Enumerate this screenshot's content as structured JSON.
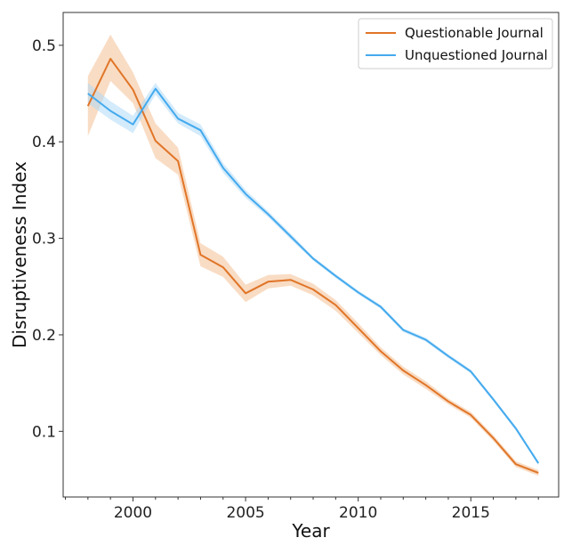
{
  "chart_data": {
    "type": "line",
    "xlabel": "Year",
    "ylabel": "Disruptiveness Index",
    "xlim": [
      1996.9,
      2018.9
    ],
    "ylim": [
      0.032,
      0.534
    ],
    "xticks": [
      2000,
      2005,
      2010,
      2015
    ],
    "xtick_labels": [
      "2000",
      "2005",
      "2010",
      "2015"
    ],
    "yticks": [
      0.1,
      0.2,
      0.3,
      0.4,
      0.5
    ],
    "ytick_labels": [
      "0.1",
      "0.2",
      "0.3",
      "0.4",
      "0.5"
    ],
    "grid": false,
    "legend_position": "top-right",
    "x": [
      1998,
      1999,
      2000,
      2001,
      2002,
      2003,
      2004,
      2005,
      2006,
      2007,
      2008,
      2009,
      2010,
      2011,
      2012,
      2013,
      2014,
      2015,
      2016,
      2017,
      2018
    ],
    "series": [
      {
        "name": "Questionable Journal",
        "color": "#e07528",
        "band_color": "#f4b98a",
        "values": [
          0.437,
          0.486,
          0.454,
          0.401,
          0.38,
          0.283,
          0.27,
          0.243,
          0.255,
          0.257,
          0.247,
          0.231,
          0.207,
          0.183,
          0.163,
          0.148,
          0.131,
          0.117,
          0.093,
          0.066,
          0.057
        ],
        "lower": [
          0.406,
          0.463,
          0.44,
          0.383,
          0.366,
          0.271,
          0.26,
          0.234,
          0.248,
          0.251,
          0.241,
          0.225,
          0.202,
          0.179,
          0.159,
          0.144,
          0.128,
          0.114,
          0.09,
          0.063,
          0.054
        ],
        "upper": [
          0.468,
          0.511,
          0.472,
          0.419,
          0.394,
          0.295,
          0.281,
          0.252,
          0.262,
          0.263,
          0.253,
          0.236,
          0.212,
          0.187,
          0.167,
          0.152,
          0.134,
          0.12,
          0.096,
          0.069,
          0.06
        ]
      },
      {
        "name": "Unquestioned Journal",
        "color": "#44aaee",
        "band_color": "#a9d8f7",
        "values": [
          0.45,
          0.432,
          0.418,
          0.455,
          0.424,
          0.412,
          0.373,
          0.346,
          0.325,
          0.302,
          0.279,
          0.261,
          0.244,
          0.229,
          0.205,
          0.195,
          0.178,
          0.162,
          0.133,
          0.103,
          0.067
        ],
        "lower": [
          0.44,
          0.423,
          0.409,
          0.449,
          0.419,
          0.406,
          0.368,
          0.342,
          0.322,
          0.299,
          0.277,
          0.259,
          0.242,
          0.227,
          0.203,
          0.193,
          0.176,
          0.16,
          0.131,
          0.101,
          0.065
        ],
        "upper": [
          0.461,
          0.442,
          0.427,
          0.461,
          0.43,
          0.418,
          0.378,
          0.35,
          0.328,
          0.305,
          0.281,
          0.263,
          0.246,
          0.231,
          0.207,
          0.197,
          0.18,
          0.164,
          0.135,
          0.105,
          0.069
        ]
      }
    ]
  }
}
